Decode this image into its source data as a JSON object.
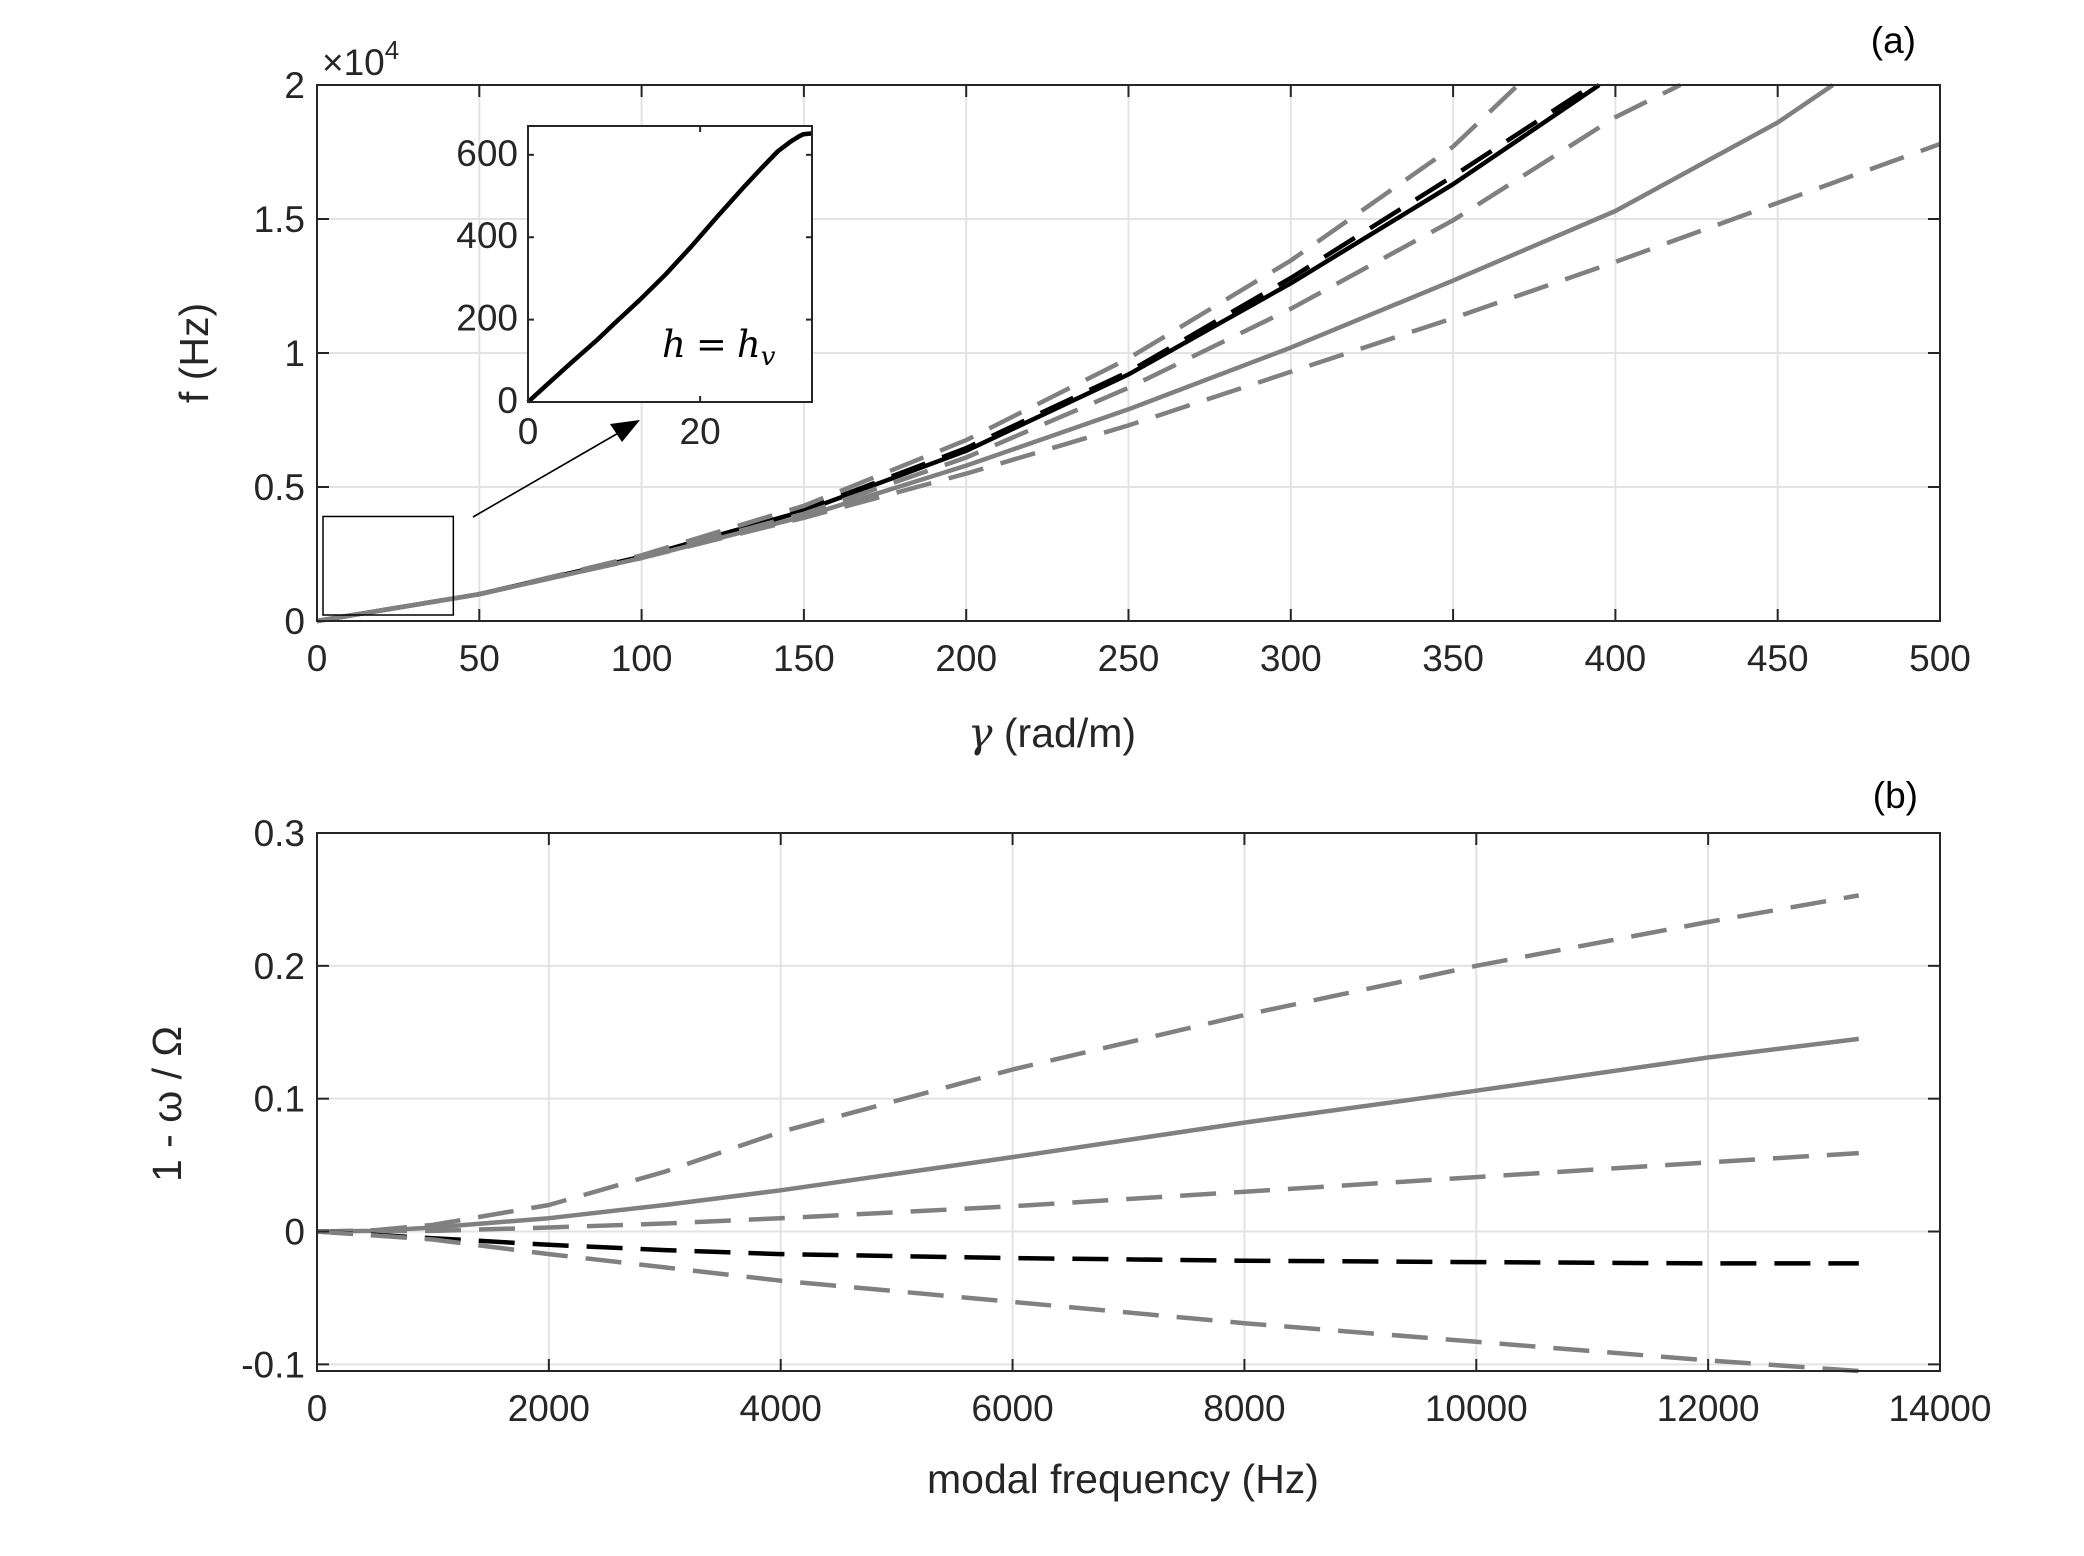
{
  "chart_data": [
    {
      "type": "line",
      "panel_label": "(a)",
      "xlabel_symbol": "γ",
      "xlabel": "(rad/m)",
      "ylabel": "f (Hz)",
      "y_exponent_label": "×10",
      "y_exponent_power": "4",
      "xlim": [
        0,
        500
      ],
      "ylim": [
        0,
        20000
      ],
      "xticks": [
        "0",
        "50",
        "100",
        "150",
        "200",
        "250",
        "300",
        "350",
        "400",
        "450",
        "500"
      ],
      "yticks": [
        "0",
        "0.5",
        "1",
        "1.5",
        "2"
      ],
      "grid": true,
      "series": [
        {
          "style": "solid",
          "color": "#000000",
          "x": [
            0,
            50,
            100,
            150,
            200,
            250,
            300,
            350,
            395
          ],
          "y": [
            0,
            1000,
            2400,
            4100,
            6350,
            9200,
            12600,
            16300,
            20000
          ]
        },
        {
          "style": "dashed",
          "color": "#000000",
          "x": [
            0,
            50,
            100,
            150,
            200,
            250,
            300,
            350,
            393
          ],
          "y": [
            0,
            1000,
            2400,
            4150,
            6450,
            9300,
            12800,
            16600,
            20000
          ]
        },
        {
          "style": "dashed",
          "color": "#808080",
          "x": [
            0,
            50,
            100,
            150,
            200,
            250,
            300,
            350,
            370
          ],
          "y": [
            0,
            1000,
            2450,
            4300,
            6750,
            9800,
            13450,
            17700,
            20000
          ]
        },
        {
          "style": "dashed",
          "color": "#808080",
          "x": [
            0,
            50,
            100,
            150,
            200,
            250,
            300,
            350,
            400,
            420
          ],
          "y": [
            0,
            1000,
            2400,
            4000,
            6100,
            8700,
            11650,
            14950,
            18800,
            20000
          ]
        },
        {
          "style": "solid",
          "color": "#808080",
          "x": [
            0,
            50,
            100,
            150,
            200,
            250,
            300,
            350,
            400,
            450,
            467
          ],
          "y": [
            0,
            1000,
            2350,
            3900,
            5800,
            7900,
            10200,
            12700,
            15300,
            18600,
            20000
          ]
        },
        {
          "style": "dashed",
          "color": "#808080",
          "x": [
            0,
            50,
            100,
            150,
            200,
            250,
            300,
            350,
            400,
            450,
            500
          ],
          "y": [
            0,
            1000,
            2350,
            3850,
            5500,
            7300,
            9300,
            11300,
            13400,
            15600,
            17800
          ]
        }
      ],
      "zoom_box": {
        "xlim": [
          0,
          42
        ],
        "ylim": [
          0,
          3900
        ]
      },
      "inset": {
        "xlim": [
          0,
          33
        ],
        "ylim": [
          0,
          670
        ],
        "xticks": [
          "0",
          "20"
        ],
        "yticks": [
          "0",
          "200",
          "400",
          "600"
        ],
        "annotation_lhs": "h",
        "annotation_eq": "=",
        "annotation_rhs": "h",
        "annotation_sub": "v",
        "series": {
          "x": [
            0,
            2,
            5,
            8,
            10,
            13,
            16,
            19,
            22,
            25,
            27,
            29,
            30.5,
            31.5,
            32,
            33
          ],
          "y": [
            0,
            38,
            95,
            150,
            190,
            248,
            310,
            378,
            450,
            520,
            565,
            608,
            632,
            645,
            650,
            652
          ]
        }
      }
    },
    {
      "type": "line",
      "panel_label": "(b)",
      "xlabel": "modal frequency (Hz)",
      "ylabel": "1 - ω / Ω",
      "xlim": [
        0,
        14000
      ],
      "ylim": [
        -0.105,
        0.3
      ],
      "xticks": [
        "0",
        "2000",
        "4000",
        "6000",
        "8000",
        "10000",
        "12000",
        "14000"
      ],
      "yticks": [
        "-0.1",
        "0",
        "0.1",
        "0.2",
        "0.3"
      ],
      "grid": true,
      "series": [
        {
          "style": "dashed",
          "color": "#808080",
          "x": [
            0,
            500,
            1000,
            2000,
            3000,
            4000,
            6000,
            8000,
            10000,
            12000,
            13300
          ],
          "y": [
            0,
            0.001,
            0.005,
            0.02,
            0.045,
            0.075,
            0.122,
            0.163,
            0.2,
            0.233,
            0.253
          ]
        },
        {
          "style": "solid",
          "color": "#808080",
          "x": [
            0,
            500,
            1000,
            2000,
            3000,
            4000,
            6000,
            8000,
            10000,
            12000,
            13300
          ],
          "y": [
            0,
            0.0005,
            0.003,
            0.01,
            0.02,
            0.031,
            0.056,
            0.082,
            0.106,
            0.131,
            0.145
          ]
        },
        {
          "style": "dashed",
          "color": "#808080",
          "x": [
            0,
            1000,
            2000,
            3000,
            4000,
            6000,
            8000,
            10000,
            12000,
            13300
          ],
          "y": [
            0,
            0.0005,
            0.003,
            0.006,
            0.01,
            0.019,
            0.03,
            0.041,
            0.052,
            0.059
          ]
        },
        {
          "style": "dashed",
          "color": "#000000",
          "x": [
            0,
            1000,
            2000,
            3000,
            4000,
            6000,
            8000,
            10000,
            12000,
            13300
          ],
          "y": [
            0,
            -0.005,
            -0.01,
            -0.014,
            -0.017,
            -0.02,
            -0.022,
            -0.023,
            -0.024,
            -0.024
          ]
        },
        {
          "style": "dashed",
          "color": "#808080",
          "x": [
            0,
            1000,
            2000,
            3000,
            4000,
            6000,
            8000,
            10000,
            12000,
            13300
          ],
          "y": [
            0,
            -0.006,
            -0.017,
            -0.027,
            -0.037,
            -0.053,
            -0.069,
            -0.083,
            -0.097,
            -0.105
          ]
        }
      ]
    }
  ]
}
